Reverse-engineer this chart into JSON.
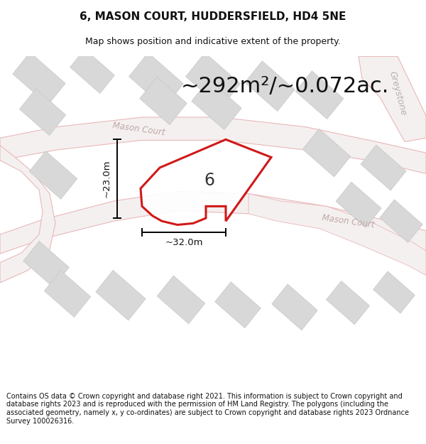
{
  "title": "6, MASON COURT, HUDDERSFIELD, HD4 5NE",
  "subtitle": "Map shows position and indicative extent of the property.",
  "area_text": "~292m²/~0.072ac.",
  "dim_horizontal": "~32.0m",
  "dim_vertical": "~23.0m",
  "plot_number": "6",
  "copyright_text": "Contains OS data © Crown copyright and database right 2021. This information is subject to Crown copyright and database rights 2023 and is reproduced with the permission of HM Land Registry. The polygons (including the associated geometry, namely x, y co-ordinates) are subject to Crown copyright and database rights 2023 Ordnance Survey 100026316.",
  "map_bg": "#f7f5f5",
  "road_outline": "#e8b8b8",
  "road_fill": "#f5f0f0",
  "building_fill": "#d8d8d8",
  "building_edge": "#c8c8c8",
  "plot_color": "#cc0000",
  "title_fontsize": 11,
  "subtitle_fontsize": 9,
  "area_fontsize": 22,
  "dim_fontsize": 9.5,
  "number_fontsize": 17,
  "copyright_fontsize": 7.0,
  "street_color": "#c0a8a8",
  "street_fontsize": 8.5,
  "greystone_color": "#b8b0b0",
  "greystone_fontsize": 9
}
